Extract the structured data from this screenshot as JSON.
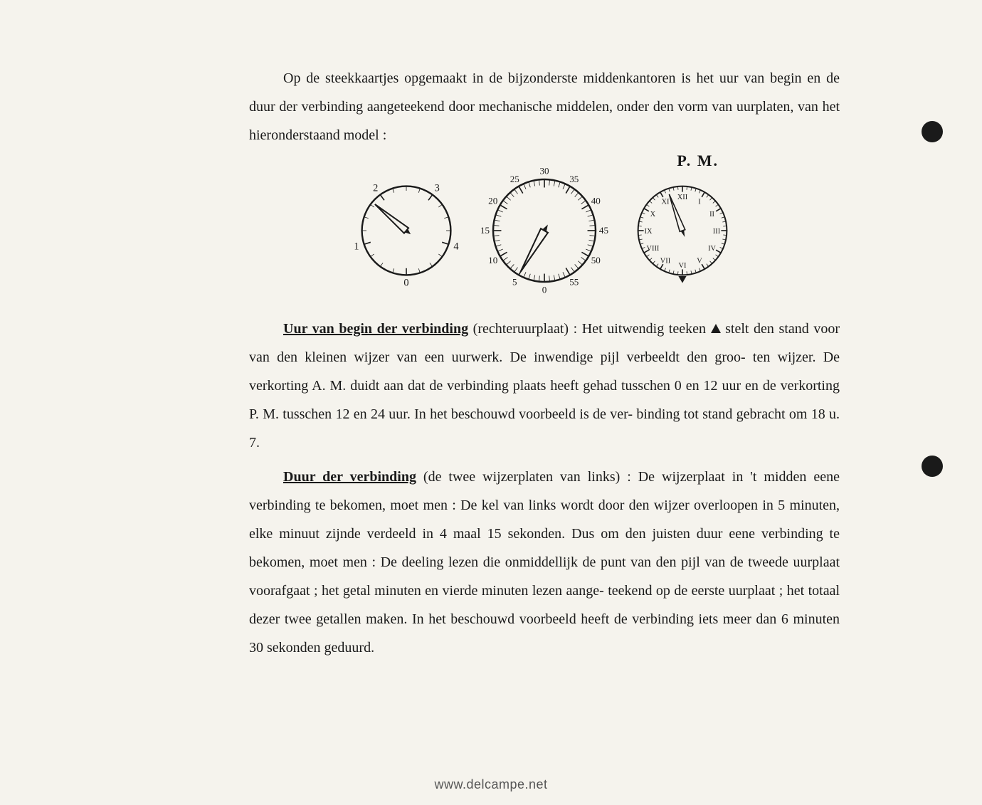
{
  "intro": {
    "line1": "Op de steekkaartjes opgemaakt in de bijzonderste middenkantoren is het uur van begin",
    "line2": "en de duur der verbinding aangeteekend door mechanische middelen, onder den vorm van",
    "line3": "uurplaten, van het hieronderstaand model :"
  },
  "pm_label": "P. M.",
  "section1": {
    "heading": "Uur van begin der verbinding",
    "after_heading": " (rechteruurplaat) : Het uitwendig teeken ",
    "after_triangle": " stelt den",
    "line2": "stand voor van den kleinen wijzer van een uurwerk. De inwendige pijl verbeeldt den groo-",
    "line3": "ten wijzer. De verkorting A. M. duidt aan dat de verbinding plaats heeft gehad tusschen 0 en",
    "line4": "12 uur en de verkorting P. M. tusschen 12 en 24 uur. In het beschouwd voorbeeld is de ver-",
    "line5": "binding tot stand gebracht om 18 u. 7."
  },
  "section2": {
    "heading": "Duur der verbinding",
    "after_heading": " (de twee wijzerplaten van links) : De wijzerplaat in 't midden",
    "line2": "eene verbinding te bekomen, moet men : De kel van links wordt door den wijzer overloopen",
    "line3": "in 5 minuten, elke minuut zijnde verdeeld in 4 maal 15 sekonden. Dus om den juisten duur",
    "line4": "eene verbinding te bekomen, moet men : De   deeling lezen die onmiddellijk de punt van den",
    "line5": "pijl van de tweede uurplaat voorafgaat ; het getal minuten en vierde minuten lezen aange-",
    "line6": "teekend op de eerste uurplaat ; het totaal dezer twee getallen maken. In het beschouwd",
    "line7": "voorbeeld heeft de verbinding iets meer dan  6 minuten 30 sekonden geduurd."
  },
  "dial_left": {
    "labels": [
      "0",
      "1",
      "2",
      "3",
      "4"
    ],
    "stroke": "#1a1a1a",
    "bg": "#f5f3ed"
  },
  "dial_mid": {
    "labels": [
      "0",
      "5",
      "10",
      "15",
      "20",
      "25",
      "30",
      "35",
      "40",
      "45",
      "50",
      "55"
    ],
    "stroke": "#1a1a1a",
    "bg": "#f5f3ed"
  },
  "dial_right": {
    "labels": [
      "XII",
      "I",
      "II",
      "III",
      "IV",
      "V",
      "VI",
      "VII",
      "VIII",
      "IX",
      "X",
      "XI"
    ],
    "stroke": "#1a1a1a",
    "bg": "#f5f3ed"
  },
  "watermark": "www.delcampe.net"
}
